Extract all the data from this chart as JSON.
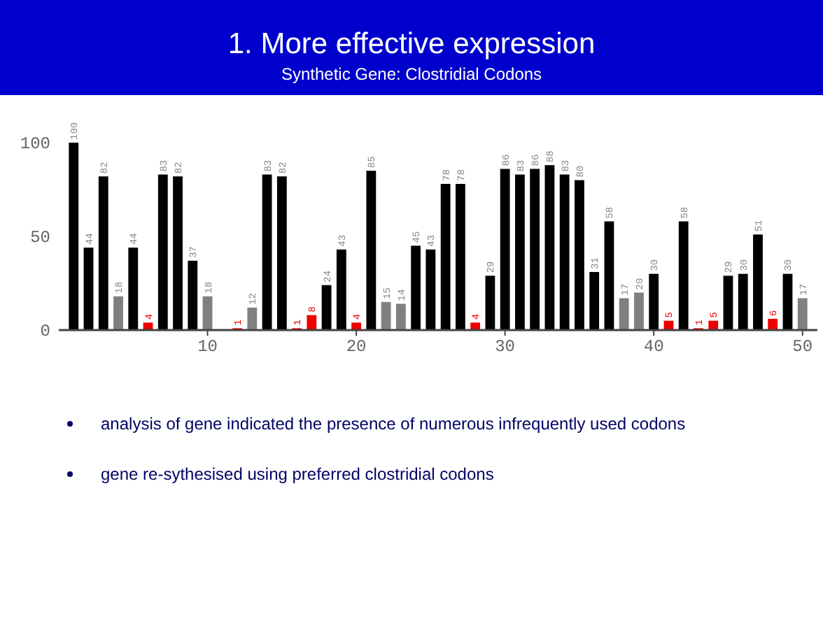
{
  "chart_data": {
    "type": "bar",
    "title": "1.  More effective expression",
    "subtitle": "Synthetic Gene: Clostridial Codons",
    "x": [
      1,
      2,
      3,
      4,
      5,
      6,
      7,
      8,
      9,
      10,
      11,
      12,
      13,
      14,
      15,
      16,
      17,
      18,
      19,
      20,
      21,
      22,
      23,
      24,
      25,
      26,
      27,
      28,
      29,
      30,
      31,
      32,
      33,
      34,
      35,
      36,
      37,
      38,
      39,
      40,
      41,
      42,
      43,
      44,
      45,
      46,
      47,
      48,
      49,
      50
    ],
    "values": [
      100,
      44,
      82,
      18,
      44,
      4,
      83,
      82,
      37,
      18,
      null,
      1,
      12,
      83,
      82,
      1,
      8,
      24,
      43,
      4,
      85,
      15,
      14,
      45,
      43,
      78,
      78,
      4,
      29,
      86,
      83,
      86,
      88,
      83,
      80,
      31,
      58,
      17,
      20,
      30,
      5,
      58,
      1,
      5,
      29,
      30,
      51,
      6,
      30,
      17
    ],
    "colors": [
      "#000000",
      "#000000",
      "#000000",
      "#808080",
      "#000000",
      "#ee0000",
      "#000000",
      "#000000",
      "#000000",
      "#808080",
      "#000000",
      "#ee0000",
      "#808080",
      "#000000",
      "#000000",
      "#ee0000",
      "#ee0000",
      "#000000",
      "#000000",
      "#ee0000",
      "#000000",
      "#808080",
      "#808080",
      "#000000",
      "#000000",
      "#000000",
      "#000000",
      "#ee0000",
      "#000000",
      "#000000",
      "#000000",
      "#000000",
      "#000000",
      "#000000",
      "#000000",
      "#000000",
      "#000000",
      "#808080",
      "#808080",
      "#000000",
      "#ee0000",
      "#000000",
      "#ee0000",
      "#ee0000",
      "#000000",
      "#000000",
      "#000000",
      "#ee0000",
      "#000000",
      "#808080"
    ],
    "xlim": [
      0,
      51
    ],
    "xticks": [
      10,
      20,
      30,
      40,
      50
    ],
    "ylim": [
      0,
      100
    ],
    "yticks": [
      0,
      50,
      100
    ],
    "data_labels": true,
    "annotations": [
      "analysis of gene indicated the presence of numerous infrequently used codons",
      "gene re-sythesised using preferred clostridial codons"
    ]
  }
}
